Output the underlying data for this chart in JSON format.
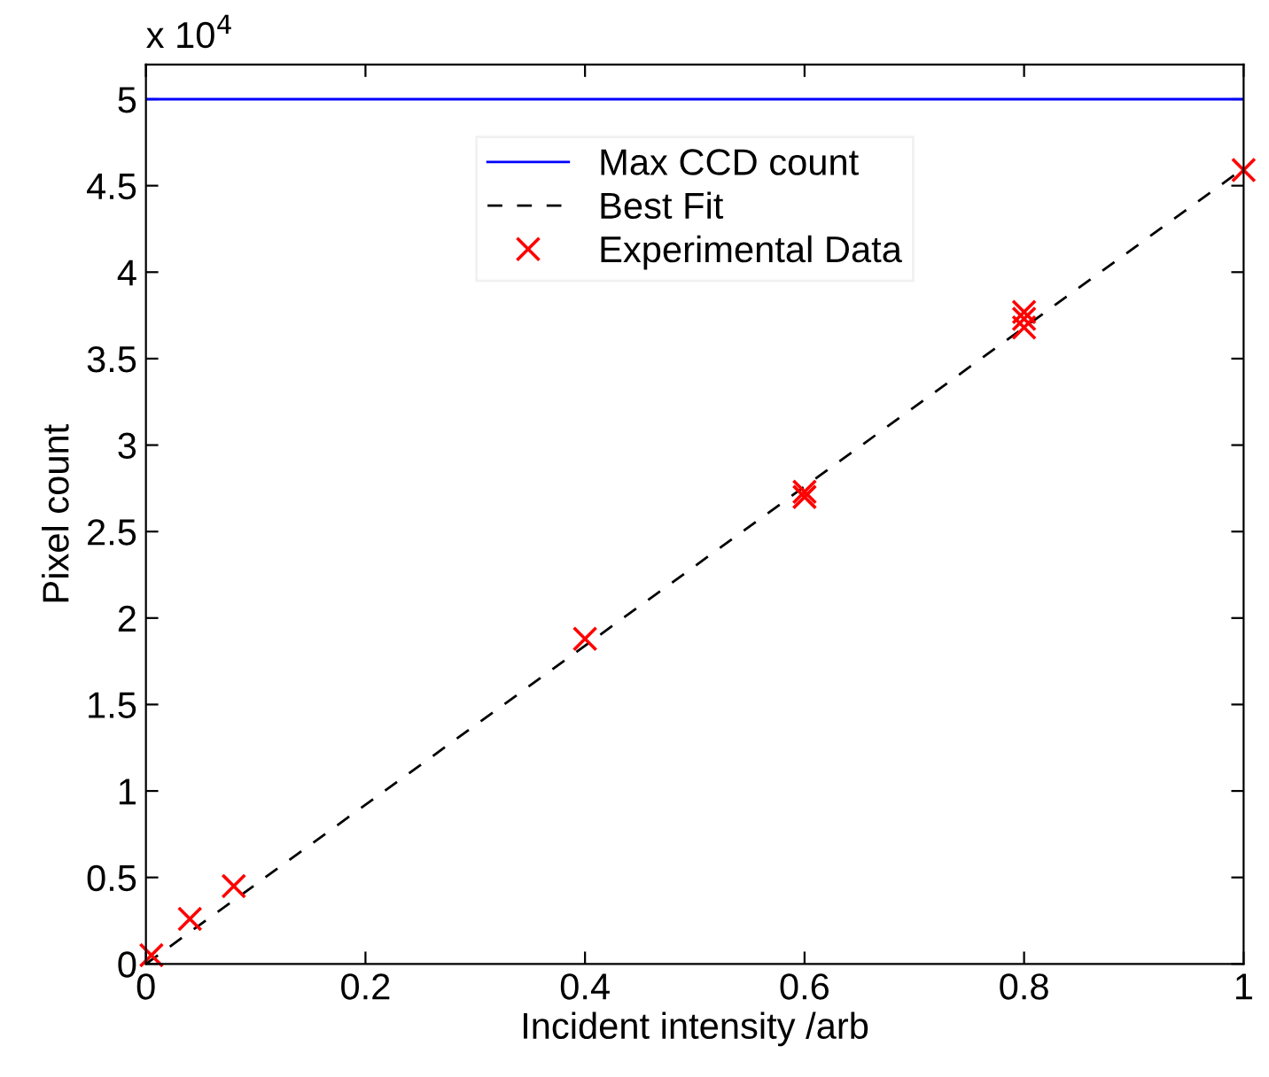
{
  "chart_data": {
    "type": "scatter",
    "xlabel": "Incident intensity /arb",
    "ylabel": "Pixel count",
    "annotations": [
      "x 10$^{4}$"
    ],
    "xlim": [
      0,
      1
    ],
    "xticks": [
      0,
      0.2,
      0.4,
      0.6,
      0.8,
      1
    ],
    "ylim": [
      0,
      5.2
    ],
    "yticks": [
      0,
      0.5,
      1,
      1.5,
      2,
      2.5,
      3,
      3.5,
      4,
      4.5,
      5
    ],
    "grid": false,
    "legend": "top",
    "series": [
      {
        "name": "Max CCD count",
        "type": "line",
        "color": "#0000ff",
        "line_style": "solid",
        "marker": "none",
        "x": [
          0,
          1
        ],
        "values": [
          5,
          5
        ]
      },
      {
        "name": "Best Fit",
        "type": "line",
        "color": "#000000",
        "line_style": "dashed",
        "marker": "none",
        "x": [
          0,
          1
        ],
        "values": [
          0,
          4.6
        ]
      },
      {
        "name": "Experimental Data",
        "color": "#ff0000",
        "marker": "cross",
        "x": [
          0.005,
          0.04,
          0.08,
          0.4,
          0.6,
          0.6,
          0.8,
          0.8,
          0.8,
          1
        ],
        "values": [
          0.05,
          0.26,
          0.45,
          1.88,
          2.7,
          2.73,
          3.68,
          3.73,
          3.77,
          4.59
        ]
      }
    ]
  }
}
